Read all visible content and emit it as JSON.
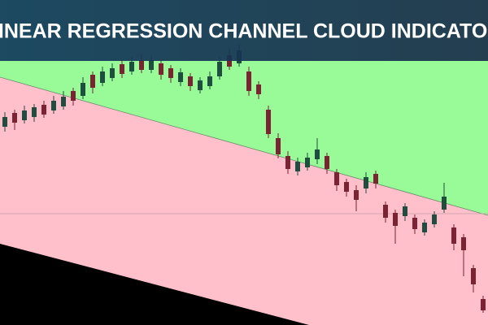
{
  "chart_data": {
    "type": "candlestick",
    "title": "LINEAR REGRESSION CHANNEL CLOUD INDICATOR",
    "up_color": "#1f4d3f",
    "down_color": "#7b2233",
    "open": [
      244,
      261,
      252,
      256,
      271,
      264,
      269,
      288,
      282,
      308,
      298,
      304,
      321,
      312,
      326,
      314,
      322,
      316,
      299,
      306,
      289,
      294,
      306,
      332,
      322,
      312,
      296,
      265,
      230,
      208,
      189,
      194,
      204,
      208,
      188,
      176,
      166,
      168,
      186,
      148,
      138,
      134,
      132,
      114,
      124,
      142,
      120,
      108,
      70,
      32
    ],
    "high": [
      262,
      265,
      270,
      272,
      276,
      282,
      288,
      292,
      305,
      312,
      318,
      322,
      326,
      330,
      333,
      332,
      326,
      320,
      316,
      310,
      305,
      312,
      330,
      340,
      345,
      318,
      300,
      270,
      236,
      214,
      206,
      212,
      230,
      212,
      192,
      180,
      172,
      188,
      190,
      152,
      142,
      150,
      136,
      130,
      140,
      175,
      124,
      112,
      74,
      36
    ],
    "low": [
      238,
      240,
      248,
      250,
      255,
      260,
      265,
      270,
      278,
      285,
      294,
      300,
      304,
      308,
      310,
      310,
      302,
      298,
      294,
      288,
      285,
      290,
      302,
      314,
      318,
      282,
      278,
      230,
      205,
      186,
      184,
      190,
      198,
      186,
      165,
      158,
      140,
      162,
      168,
      126,
      100,
      128,
      112,
      110,
      120,
      138,
      92,
      60,
      40,
      15
    ],
    "close": [
      256,
      249,
      264,
      268,
      259,
      276,
      281,
      276,
      298,
      292,
      312,
      316,
      309,
      324,
      314,
      326,
      308,
      304,
      311,
      294,
      301,
      306,
      324,
      318,
      338,
      288,
      284,
      235,
      210,
      192,
      201,
      206,
      216,
      192,
      172,
      164,
      154,
      182,
      174,
      132,
      122,
      146,
      118,
      126,
      136,
      158,
      100,
      92,
      50,
      18
    ]
  }
}
